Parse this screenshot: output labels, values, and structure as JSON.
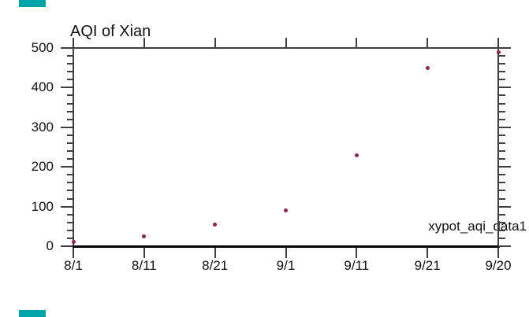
{
  "chart_data": {
    "type": "scatter",
    "title": "AQI of Xian",
    "annotation": "xypot_aqi_data1",
    "categories": [
      "8/1",
      "8/11",
      "8/21",
      "9/1",
      "9/11",
      "9/21",
      "9/20"
    ],
    "series": [
      {
        "name": "AQI",
        "values": [
          10,
          25,
          55,
          90,
          230,
          450,
          490
        ]
      }
    ],
    "xlabel": "",
    "ylabel": "",
    "ylim": [
      0,
      500
    ],
    "y_major_ticks": [
      0,
      100,
      200,
      300,
      400,
      500
    ],
    "y_minor_step": 20,
    "grid": false,
    "legend_position": "none",
    "marker_color": "#8B2452",
    "axis_color": "#3f3f3f",
    "bottom_axis_color": "#000000",
    "text_color": "#111111"
  },
  "decorations": {
    "teal_marker_color": "#00A6A6"
  }
}
